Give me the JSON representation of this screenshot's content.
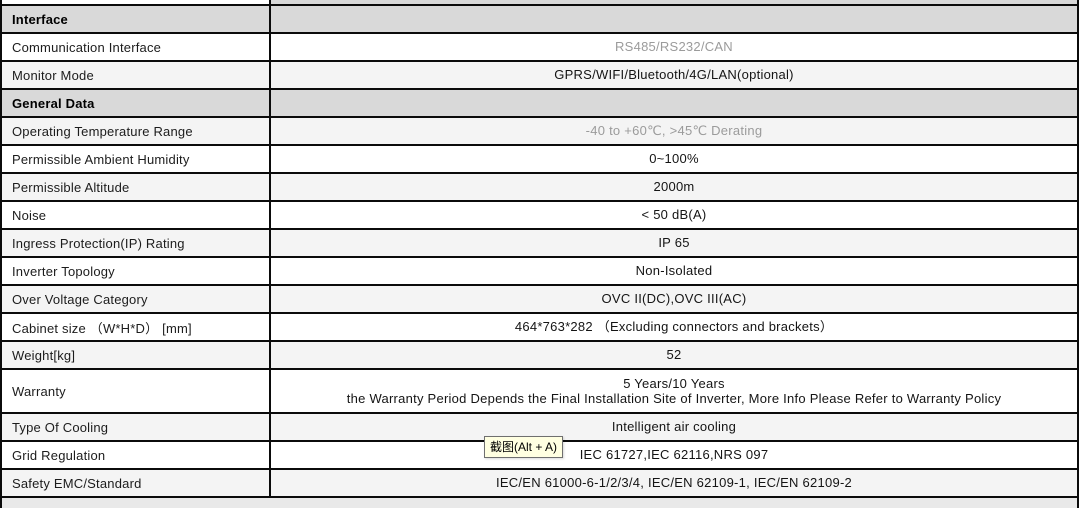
{
  "colors": {
    "section_header_bg": "#d9d9d9",
    "shaded_row_bg": "#f4f4f4",
    "plain_row_bg": "#ffffff",
    "border": "#0b0b0b",
    "muted_text": "#9b9b9b",
    "tooltip_bg": "#ffffe1"
  },
  "tooltip": {
    "text": "截图(Alt + A)"
  },
  "table": {
    "rows": [
      {
        "type": "sliver_top"
      },
      {
        "type": "header",
        "label": "Interface"
      },
      {
        "type": "data",
        "shade": false,
        "label": "Communication Interface",
        "value": "RS485/RS232/CAN",
        "muted": true
      },
      {
        "type": "data",
        "shade": true,
        "label": "Monitor Mode",
        "value": "GPRS/WIFI/Bluetooth/4G/LAN(optional)",
        "muted": false
      },
      {
        "type": "header",
        "label": "General Data"
      },
      {
        "type": "data",
        "shade": true,
        "label": "Operating Temperature Range",
        "value": "-40 to +60℃, >45℃ Derating",
        "muted": true
      },
      {
        "type": "data",
        "shade": false,
        "label": "Permissible Ambient Humidity",
        "value": "0~100%",
        "muted": false
      },
      {
        "type": "data",
        "shade": true,
        "label": "Permissible Altitude",
        "value": "2000m",
        "muted": false
      },
      {
        "type": "data",
        "shade": false,
        "label": "Noise",
        "value": "< 50 dB(A)",
        "muted": false
      },
      {
        "type": "data",
        "shade": true,
        "label": "Ingress Protection(IP) Rating",
        "value": "IP 65",
        "muted": false
      },
      {
        "type": "data",
        "shade": false,
        "label": "Inverter Topology",
        "value": "Non-Isolated",
        "muted": false
      },
      {
        "type": "data",
        "shade": true,
        "label": "Over Voltage Category",
        "value": "OVC II(DC),OVC III(AC)",
        "muted": false
      },
      {
        "type": "data",
        "shade": false,
        "label": "Cabinet size （W*H*D） [mm]",
        "value": "464*763*282 （Excluding connectors and brackets）",
        "muted": false
      },
      {
        "type": "data",
        "shade": true,
        "label": "Weight[kg]",
        "value": "52",
        "muted": false
      },
      {
        "type": "data",
        "shade": false,
        "tall": true,
        "label": "Warranty",
        "value": "5 Years/10 Years",
        "value_line2": "the Warranty Period Depends the Final Installation Site of Inverter, More Info Please Refer to Warranty Policy",
        "muted": false
      },
      {
        "type": "data",
        "shade": true,
        "label": "Type Of Cooling",
        "value": "Intelligent air cooling",
        "muted": false
      },
      {
        "type": "data",
        "shade": false,
        "label": "Grid Regulation",
        "value": "IEC 61727,IEC 62116,NRS 097",
        "muted": false
      },
      {
        "type": "data",
        "shade": true,
        "label": "Safety EMC/Standard",
        "value": "IEC/EN 61000-6-1/2/3/4, IEC/EN 62109-1, IEC/EN 62109-2",
        "muted": false
      },
      {
        "type": "sliver_bottom"
      }
    ]
  }
}
